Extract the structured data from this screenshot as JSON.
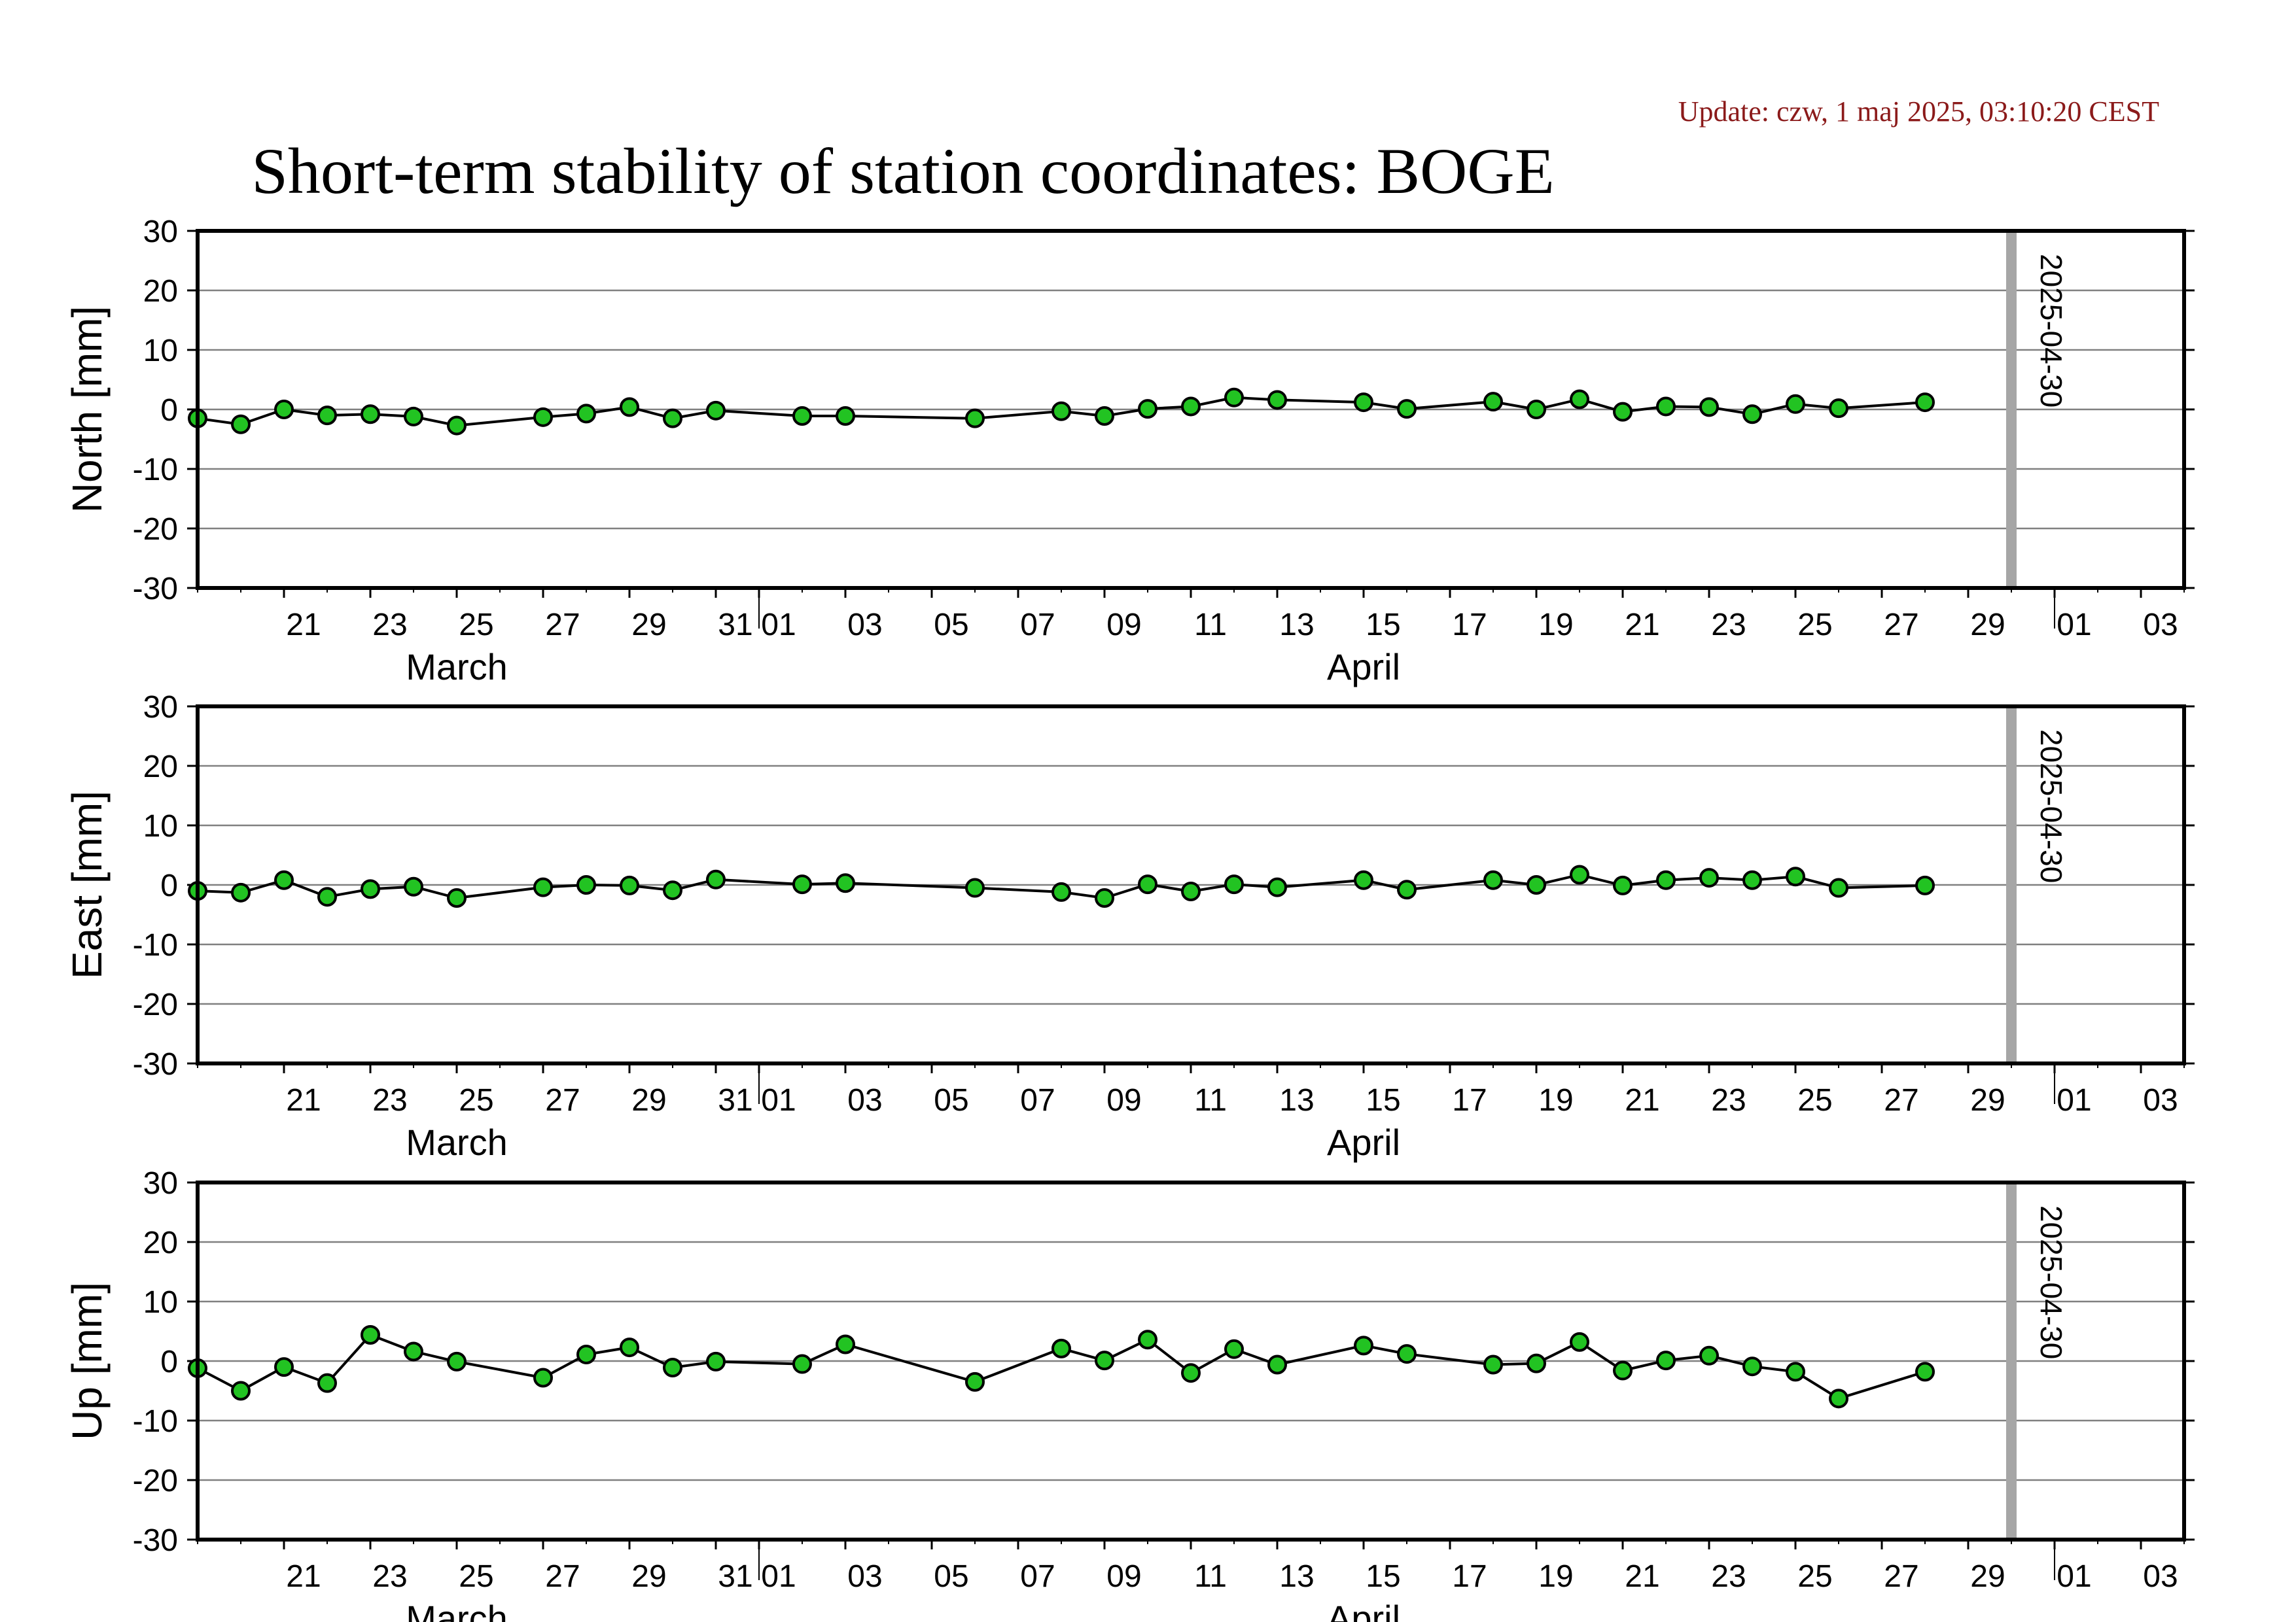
{
  "header": {
    "update_text": "Update: czw, 1 maj 2025, 03:10:20 CEST",
    "title": "Short-term stability of station coordinates: BOGE"
  },
  "colors": {
    "point_fill": "#22c322",
    "point_stroke": "#000000",
    "line": "#000000",
    "grid": "#808080",
    "marker_line": "#a6a6a6",
    "update_text": "#8b1a1a"
  },
  "chart_data": [
    {
      "type": "line",
      "ylabel": "North [mm]",
      "ylim": [
        -30,
        30
      ],
      "yticks": [
        30,
        20,
        10,
        0,
        -10,
        -20,
        -30
      ],
      "xlim": [
        "2025-03-19",
        "2025-05-04"
      ],
      "day_tick_labels": [
        "21",
        "23",
        "25",
        "27",
        "29",
        "31",
        "01",
        "03",
        "05",
        "07",
        "09",
        "11",
        "13",
        "15",
        "17",
        "19",
        "21",
        "23",
        "25",
        "27",
        "29",
        "01",
        "03"
      ],
      "month_labels": [
        "March",
        "April"
      ],
      "grid": true,
      "vertical_marker": {
        "date": "2025-04-30",
        "label": "2025-04-30"
      },
      "series": [
        {
          "x": [
            "2025-03-19",
            "2025-03-20",
            "2025-03-21",
            "2025-03-22",
            "2025-03-23",
            "2025-03-24",
            "2025-03-25",
            "2025-03-27",
            "2025-03-28",
            "2025-03-29",
            "2025-03-30",
            "2025-03-31",
            "2025-04-02",
            "2025-04-03",
            "2025-04-06",
            "2025-04-08",
            "2025-04-09",
            "2025-04-10",
            "2025-04-11",
            "2025-04-12",
            "2025-04-13",
            "2025-04-15",
            "2025-04-16",
            "2025-04-18",
            "2025-04-19",
            "2025-04-20",
            "2025-04-21",
            "2025-04-22",
            "2025-04-23",
            "2025-04-24",
            "2025-04-25",
            "2025-04-26",
            "2025-04-28"
          ],
          "y": [
            -1.5,
            -2.5,
            0,
            -1,
            -0.8,
            -1.2,
            -2.7,
            -1.3,
            -0.7,
            0.4,
            -1.5,
            -0.2,
            -1.1,
            -1.1,
            -1.5,
            -0.3,
            -1.1,
            0.1,
            0.5,
            2.0,
            1.6,
            1.2,
            0.1,
            1.3,
            0,
            1.7,
            -0.4,
            0.5,
            0.4,
            -0.8,
            0.9,
            0.2,
            1.2
          ]
        }
      ]
    },
    {
      "type": "line",
      "ylabel": "East [mm]",
      "ylim": [
        -30,
        30
      ],
      "yticks": [
        30,
        20,
        10,
        0,
        -10,
        -20,
        -30
      ],
      "xlim": [
        "2025-03-19",
        "2025-05-04"
      ],
      "day_tick_labels": [
        "21",
        "23",
        "25",
        "27",
        "29",
        "31",
        "01",
        "03",
        "05",
        "07",
        "09",
        "11",
        "13",
        "15",
        "17",
        "19",
        "21",
        "23",
        "25",
        "27",
        "29",
        "01",
        "03"
      ],
      "month_labels": [
        "March",
        "April"
      ],
      "grid": true,
      "vertical_marker": {
        "date": "2025-04-30",
        "label": "2025-04-30"
      },
      "series": [
        {
          "x": [
            "2025-03-19",
            "2025-03-20",
            "2025-03-21",
            "2025-03-22",
            "2025-03-23",
            "2025-03-24",
            "2025-03-25",
            "2025-03-27",
            "2025-03-28",
            "2025-03-29",
            "2025-03-30",
            "2025-03-31",
            "2025-04-02",
            "2025-04-03",
            "2025-04-06",
            "2025-04-08",
            "2025-04-09",
            "2025-04-10",
            "2025-04-11",
            "2025-04-12",
            "2025-04-13",
            "2025-04-15",
            "2025-04-16",
            "2025-04-18",
            "2025-04-19",
            "2025-04-20",
            "2025-04-21",
            "2025-04-22",
            "2025-04-23",
            "2025-04-24",
            "2025-04-25",
            "2025-04-26",
            "2025-04-28"
          ],
          "y": [
            -1,
            -1.3,
            0.8,
            -2,
            -0.7,
            -0.3,
            -2.2,
            -0.4,
            0,
            -0.1,
            -0.9,
            0.9,
            0.1,
            0.3,
            -0.5,
            -1.2,
            -2.2,
            0.1,
            -1.1,
            0.1,
            -0.4,
            0.8,
            -0.8,
            0.8,
            0,
            1.7,
            -0.1,
            0.8,
            1.2,
            0.8,
            1.4,
            -0.5,
            -0.1
          ]
        }
      ]
    },
    {
      "type": "line",
      "ylabel": "Up [mm]",
      "ylim": [
        -30,
        30
      ],
      "yticks": [
        30,
        20,
        10,
        0,
        -10,
        -20,
        -30
      ],
      "xlim": [
        "2025-03-19",
        "2025-05-04"
      ],
      "day_tick_labels": [
        "21",
        "23",
        "25",
        "27",
        "29",
        "31",
        "01",
        "03",
        "05",
        "07",
        "09",
        "11",
        "13",
        "15",
        "17",
        "19",
        "21",
        "23",
        "25",
        "27",
        "29",
        "01",
        "03"
      ],
      "month_labels": [
        "March",
        "April"
      ],
      "grid": true,
      "vertical_marker": {
        "date": "2025-04-30",
        "label": "2025-04-30"
      },
      "series": [
        {
          "x": [
            "2025-03-19",
            "2025-03-20",
            "2025-03-21",
            "2025-03-22",
            "2025-03-23",
            "2025-03-24",
            "2025-03-25",
            "2025-03-27",
            "2025-03-28",
            "2025-03-29",
            "2025-03-30",
            "2025-03-31",
            "2025-04-02",
            "2025-04-03",
            "2025-04-06",
            "2025-04-08",
            "2025-04-09",
            "2025-04-10",
            "2025-04-11",
            "2025-04-12",
            "2025-04-13",
            "2025-04-15",
            "2025-04-16",
            "2025-04-18",
            "2025-04-19",
            "2025-04-20",
            "2025-04-21",
            "2025-04-22",
            "2025-04-23",
            "2025-04-24",
            "2025-04-25",
            "2025-04-26",
            "2025-04-28"
          ],
          "y": [
            -1.2,
            -5,
            -1,
            -3.7,
            4.4,
            1.6,
            -0.1,
            -2.8,
            1.1,
            2.3,
            -1.1,
            -0.1,
            -0.5,
            2.8,
            -3.5,
            2.1,
            0.1,
            3.6,
            -2,
            2,
            -0.6,
            2.6,
            1.2,
            -0.6,
            -0.4,
            3.2,
            -1.6,
            0.1,
            0.9,
            -0.9,
            -1.8,
            -6.3,
            -1.8
          ]
        }
      ]
    }
  ]
}
